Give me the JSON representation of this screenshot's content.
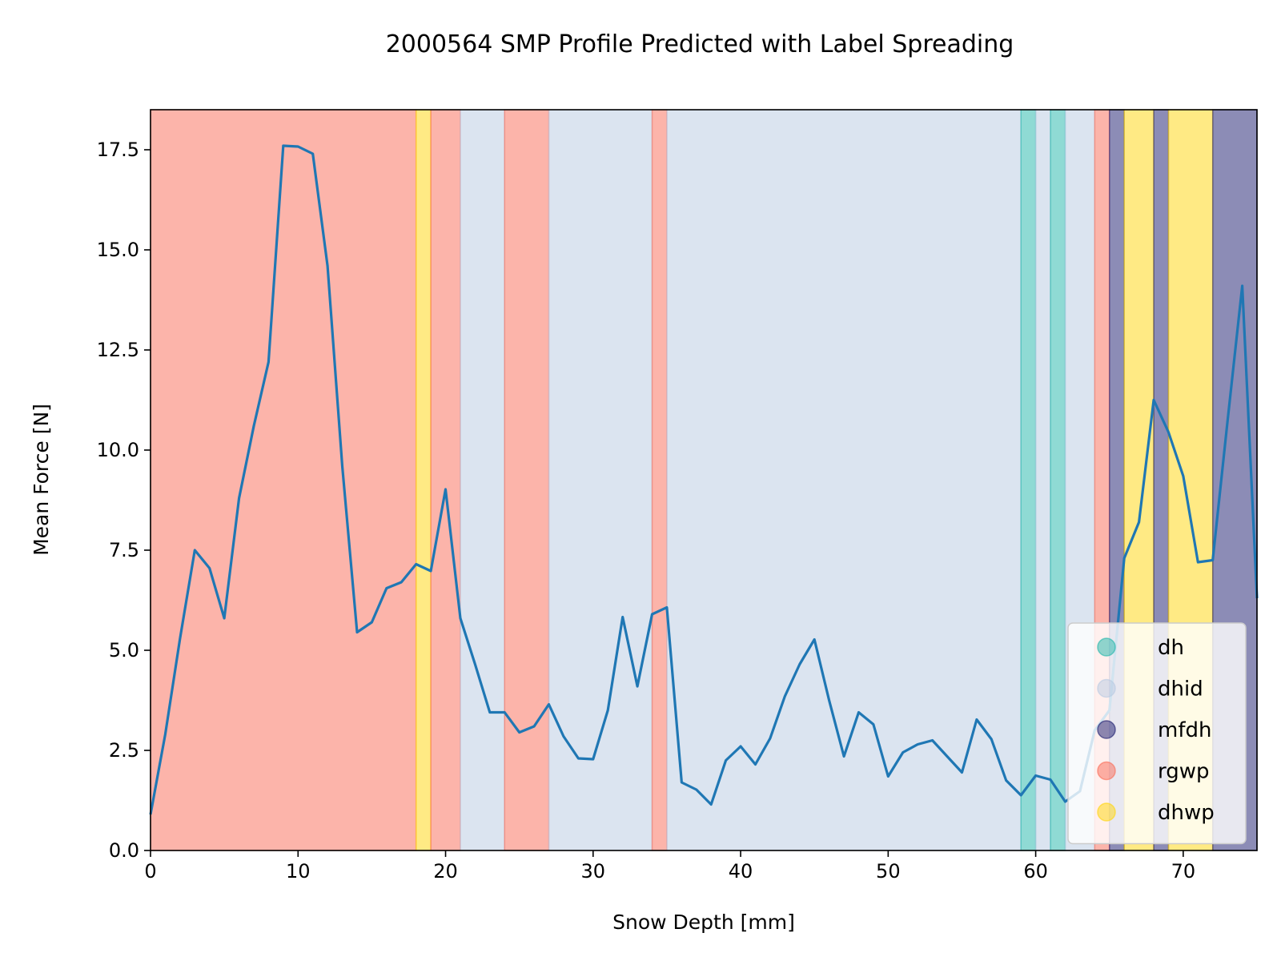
{
  "chart_data": {
    "type": "line",
    "title": "2000564 SMP Profile Predicted with Label Spreading",
    "xlabel": "Snow Depth [mm]",
    "ylabel": "Mean Force [N]",
    "xlim": [
      0,
      75
    ],
    "ylim": [
      0,
      18.5
    ],
    "xticks": [
      0,
      10,
      20,
      30,
      40,
      50,
      60,
      70
    ],
    "xtick_labels": [
      "0",
      "10",
      "20",
      "30",
      "40",
      "50",
      "60",
      "70"
    ],
    "yticks": [
      0,
      2.5,
      5,
      7.5,
      10,
      12.5,
      15,
      17.5
    ],
    "ytick_labels": [
      "0.0",
      "2.5",
      "5.0",
      "7.5",
      "10.0",
      "12.5",
      "15.0",
      "17.5"
    ],
    "grid": false,
    "legend_position": "lower-right",
    "line_color": "#1f77b4",
    "classes": [
      {
        "name": "dh",
        "color": "#1fb5aa"
      },
      {
        "name": "dhid",
        "color": "#b8cae2"
      },
      {
        "name": "mfdh",
        "color": "#1a1a6e"
      },
      {
        "name": "rgwp",
        "color": "#fa6a55"
      },
      {
        "name": "dhwp",
        "color": "#ffd60a"
      }
    ],
    "segments": [
      {
        "start": 0,
        "end": 18,
        "label": "rgwp"
      },
      {
        "start": 18,
        "end": 19,
        "label": "dhwp"
      },
      {
        "start": 19,
        "end": 21,
        "label": "rgwp"
      },
      {
        "start": 21,
        "end": 24,
        "label": "dhid"
      },
      {
        "start": 24,
        "end": 27,
        "label": "rgwp"
      },
      {
        "start": 27,
        "end": 34,
        "label": "dhid"
      },
      {
        "start": 34,
        "end": 35,
        "label": "rgwp"
      },
      {
        "start": 35,
        "end": 59,
        "label": "dhid"
      },
      {
        "start": 59,
        "end": 60,
        "label": "dh"
      },
      {
        "start": 60,
        "end": 61,
        "label": "dhid"
      },
      {
        "start": 61,
        "end": 62,
        "label": "dh"
      },
      {
        "start": 62,
        "end": 64,
        "label": "dhid"
      },
      {
        "start": 64,
        "end": 65,
        "label": "rgwp"
      },
      {
        "start": 65,
        "end": 66,
        "label": "mfdh"
      },
      {
        "start": 66,
        "end": 68,
        "label": "dhwp"
      },
      {
        "start": 68,
        "end": 69,
        "label": "mfdh"
      },
      {
        "start": 69,
        "end": 72,
        "label": "dhwp"
      },
      {
        "start": 72,
        "end": 75,
        "label": "mfdh"
      }
    ],
    "x": [
      0,
      1,
      2,
      3,
      4,
      5,
      6,
      7,
      8,
      9,
      10,
      11,
      12,
      13,
      14,
      15,
      16,
      17,
      18,
      19,
      20,
      21,
      22,
      23,
      24,
      25,
      26,
      27,
      28,
      29,
      30,
      31,
      32,
      33,
      34,
      35,
      36,
      37,
      38,
      39,
      40,
      41,
      42,
      43,
      44,
      45,
      46,
      47,
      48,
      49,
      50,
      51,
      52,
      53,
      54,
      55,
      56,
      57,
      58,
      59,
      60,
      61,
      62,
      63,
      64,
      65,
      66,
      67,
      68,
      69,
      70,
      71,
      72,
      73,
      74,
      75
    ],
    "y": [
      0.9,
      2.9,
      5.3,
      7.5,
      7.05,
      5.8,
      8.8,
      10.6,
      12.2,
      17.6,
      17.58,
      17.4,
      14.6,
      9.6,
      5.45,
      5.7,
      6.55,
      6.7,
      7.15,
      6.98,
      9.02,
      5.8,
      4.65,
      3.45,
      3.45,
      2.95,
      3.1,
      3.65,
      2.85,
      2.3,
      2.28,
      3.5,
      5.83,
      4.1,
      5.9,
      6.07,
      1.7,
      1.52,
      1.15,
      2.25,
      2.6,
      2.15,
      2.8,
      3.85,
      4.65,
      5.27,
      3.75,
      2.35,
      3.45,
      3.15,
      1.85,
      2.45,
      2.65,
      2.75,
      2.35,
      1.95,
      3.27,
      2.78,
      1.75,
      1.38,
      1.87,
      1.77,
      1.22,
      1.48,
      3.0,
      3.5,
      7.3,
      8.2,
      11.25,
      10.45,
      9.35,
      7.2,
      7.25,
      10.7,
      14.1,
      6.3
    ]
  }
}
